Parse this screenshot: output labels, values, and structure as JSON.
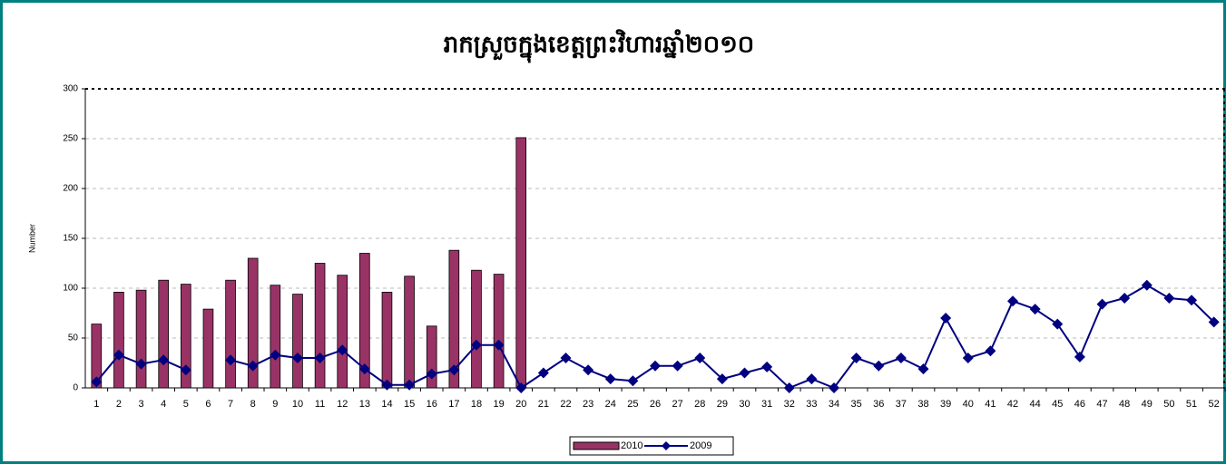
{
  "chart_data": {
    "type": "bar_line",
    "title": "រាកស្រួចក្នុងខេត្តព្រះវិហារឆ្នាំ២០១០",
    "y_label": "Number",
    "categories": [
      1,
      2,
      3,
      4,
      5,
      6,
      7,
      8,
      9,
      10,
      11,
      12,
      13,
      14,
      15,
      16,
      17,
      18,
      19,
      20,
      21,
      22,
      23,
      24,
      25,
      26,
      27,
      28,
      29,
      30,
      31,
      32,
      33,
      34,
      35,
      36,
      37,
      38,
      39,
      40,
      41,
      42,
      44,
      45,
      46,
      47,
      48,
      49,
      50,
      51,
      52
    ],
    "series": [
      {
        "name": "2010",
        "type": "bar",
        "color": "#993366",
        "values": [
          64,
          96,
          98,
          108,
          104,
          79,
          108,
          130,
          103,
          94,
          125,
          113,
          135,
          96,
          112,
          62,
          138,
          118,
          114,
          251,
          null,
          null,
          null,
          null,
          null,
          null,
          null,
          null,
          null,
          null,
          null,
          null,
          null,
          null,
          null,
          null,
          null,
          null,
          null,
          null,
          null,
          null,
          null,
          null,
          null,
          null,
          null,
          null,
          null,
          null,
          null
        ]
      },
      {
        "name": "2009",
        "type": "line",
        "color": "#000080",
        "values": [
          6,
          33,
          24,
          28,
          18,
          null,
          28,
          22,
          33,
          30,
          30,
          38,
          19,
          3,
          3,
          14,
          18,
          43,
          43,
          0,
          15,
          30,
          18,
          9,
          7,
          22,
          22,
          30,
          9,
          15,
          21,
          0,
          9,
          0,
          30,
          22,
          30,
          19,
          70,
          30,
          37,
          87,
          79,
          64,
          31,
          84,
          90,
          103,
          90,
          88,
          66
        ]
      }
    ],
    "ylim": [
      0,
      300
    ],
    "yticks": [
      0,
      50,
      100,
      150,
      200,
      250,
      300
    ],
    "grid": true,
    "legend": "bottom"
  }
}
